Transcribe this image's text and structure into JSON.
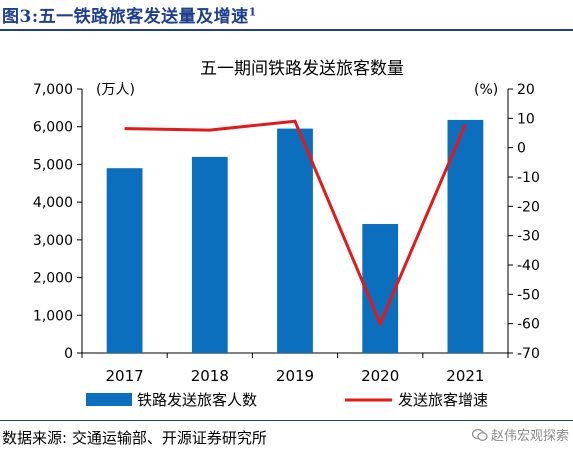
{
  "figure": {
    "label": "图3:",
    "heading": "五一铁路旅客发送量及增速",
    "footnote_mark": "1",
    "source": "数据来源: 交通运输部、开源证券研究所",
    "watermark": "赵伟宏观探索"
  },
  "chart_data": {
    "type": "bar",
    "title": "五一期间铁路发送旅客数量",
    "categories": [
      "2017",
      "2018",
      "2019",
      "2020",
      "2021"
    ],
    "left_axis": {
      "unit_label": "(万人)",
      "ylim": [
        0,
        7000
      ],
      "ticks": [
        "0",
        "1,000",
        "2,000",
        "3,000",
        "4,000",
        "5,000",
        "6,000",
        "7,000"
      ],
      "tick_values": [
        0,
        1000,
        2000,
        3000,
        4000,
        5000,
        6000,
        7000
      ]
    },
    "right_axis": {
      "unit_label": "(%)",
      "ylim": [
        -70,
        20
      ],
      "ticks": [
        "-70",
        "-60",
        "-50",
        "-40",
        "-30",
        "-20",
        "-10",
        "0",
        "10",
        "20"
      ],
      "tick_values": [
        -70,
        -60,
        -50,
        -40,
        -30,
        -20,
        -10,
        0,
        10,
        20
      ]
    },
    "series": [
      {
        "name": "铁路发送旅客人数",
        "kind": "bar",
        "axis": "left",
        "color": "#0b6fbe",
        "values": [
          4900,
          5200,
          5950,
          3420,
          6180
        ]
      },
      {
        "name": "发送旅客增速",
        "kind": "line",
        "axis": "right",
        "color": "#e31a1c",
        "values": [
          6.5,
          6,
          9,
          -60,
          8
        ]
      }
    ],
    "grid": false,
    "legend_position": "bottom"
  }
}
